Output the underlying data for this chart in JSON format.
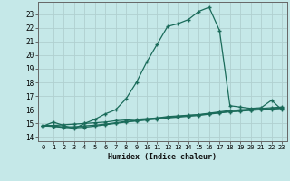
{
  "xlabel": "Humidex (Indice chaleur)",
  "background_color": "#c5e8e8",
  "grid_color": "#b0d0d0",
  "line_color": "#1a6b5a",
  "xlim": [
    -0.5,
    23.5
  ],
  "ylim": [
    13.7,
    23.9
  ],
  "xticks": [
    0,
    1,
    2,
    3,
    4,
    5,
    6,
    7,
    8,
    9,
    10,
    11,
    12,
    13,
    14,
    15,
    16,
    17,
    18,
    19,
    20,
    21,
    22,
    23
  ],
  "yticks": [
    14,
    15,
    16,
    17,
    18,
    19,
    20,
    21,
    22,
    23
  ],
  "curve1_x": [
    0,
    1,
    2,
    3,
    4,
    5,
    6,
    7,
    8,
    9,
    10,
    11,
    12,
    13,
    14,
    15,
    16,
    17,
    18,
    19,
    20,
    21,
    22,
    23
  ],
  "curve1_y": [
    14.8,
    15.1,
    14.85,
    14.6,
    15.0,
    15.3,
    15.7,
    16.0,
    16.8,
    18.0,
    19.5,
    20.8,
    22.1,
    22.3,
    22.6,
    23.2,
    23.5,
    21.8,
    16.3,
    16.2,
    16.1,
    16.15,
    16.7,
    16.0
  ],
  "curve2_x": [
    0,
    1,
    2,
    3,
    4,
    5,
    6,
    7,
    8,
    9,
    10,
    11,
    12,
    13,
    14,
    15,
    16,
    17,
    18,
    19,
    20,
    21,
    22,
    23
  ],
  "curve2_y": [
    14.85,
    14.85,
    14.9,
    14.95,
    15.0,
    15.05,
    15.1,
    15.2,
    15.25,
    15.3,
    15.35,
    15.4,
    15.5,
    15.55,
    15.6,
    15.65,
    15.75,
    15.85,
    15.95,
    16.0,
    16.05,
    16.1,
    16.15,
    16.2
  ],
  "curve3_x": [
    0,
    1,
    2,
    3,
    4,
    5,
    6,
    7,
    8,
    9,
    10,
    11,
    12,
    13,
    14,
    15,
    16,
    17,
    18,
    19,
    20,
    21,
    22,
    23
  ],
  "curve3_y": [
    14.8,
    14.8,
    14.75,
    14.75,
    14.82,
    14.87,
    14.95,
    15.05,
    15.15,
    15.2,
    15.3,
    15.38,
    15.45,
    15.5,
    15.58,
    15.63,
    15.72,
    15.8,
    15.88,
    15.92,
    15.98,
    16.02,
    16.08,
    16.12
  ],
  "curve4_x": [
    0,
    1,
    2,
    3,
    4,
    5,
    6,
    7,
    8,
    9,
    10,
    11,
    12,
    13,
    14,
    15,
    16,
    17,
    18,
    19,
    20,
    21,
    22,
    23
  ],
  "curve4_y": [
    14.82,
    14.78,
    14.7,
    14.68,
    14.72,
    14.8,
    14.9,
    15.0,
    15.1,
    15.18,
    15.25,
    15.32,
    15.4,
    15.46,
    15.52,
    15.58,
    15.68,
    15.77,
    15.85,
    15.9,
    15.96,
    16.0,
    16.05,
    16.1
  ]
}
